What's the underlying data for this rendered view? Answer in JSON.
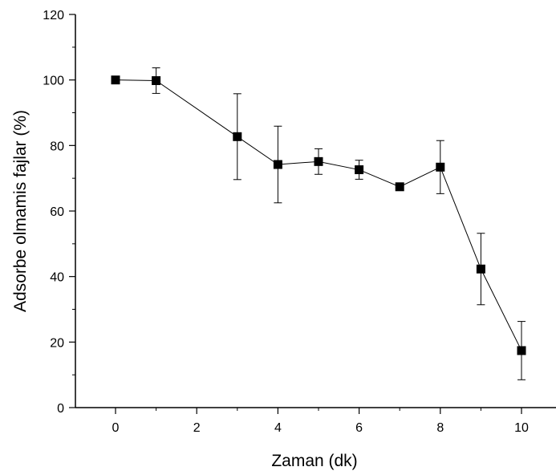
{
  "chart_data": {
    "type": "scatter",
    "xlabel": "Zaman (dk)",
    "ylabel": "Adsorbe olmamis fajlar (%)",
    "xlim": [
      -1,
      10.8
    ],
    "ylim": [
      0,
      120
    ],
    "x_ticks": [
      0,
      2,
      4,
      6,
      8,
      10
    ],
    "x_tick_labels": [
      "0",
      "2",
      "4",
      "6",
      "8",
      "10"
    ],
    "y_ticks": [
      0,
      20,
      40,
      60,
      80,
      100,
      120
    ],
    "y_tick_labels": [
      "0",
      "20",
      "40",
      "60",
      "80",
      "100",
      "120"
    ],
    "grid": false,
    "legend": "none",
    "marker": "square",
    "connect_points": true,
    "series": [
      {
        "x": [
          0,
          1,
          3,
          4,
          5,
          6,
          7,
          8,
          9,
          10
        ],
        "y": [
          100,
          99.8,
          82.7,
          74.2,
          75.1,
          72.6,
          67.4,
          73.4,
          42.3,
          17.4
        ],
        "error": [
          0,
          3.9,
          13.1,
          11.7,
          3.9,
          2.9,
          0,
          8.1,
          10.9,
          8.9
        ]
      }
    ]
  }
}
